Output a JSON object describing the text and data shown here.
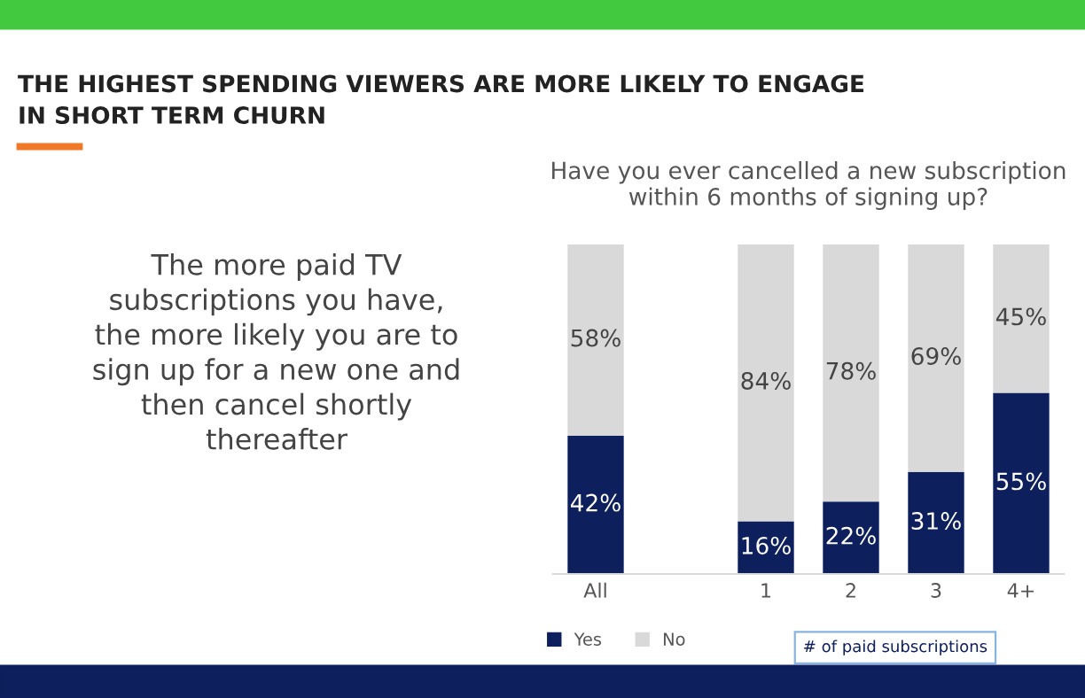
{
  "chart_data": {
    "type": "bar",
    "stacked": true,
    "title": "THE HIGHEST SPENDING VIEWERS ARE MORE LIKELY TO ENGAGE\nIN SHORT TERM CHURN",
    "subtitle": "Have you ever cancelled a new subscription\nwithin 6 months of signing up?",
    "xlabel": "# of paid subscriptions",
    "annotations": [
      "The more paid TV\nsubscriptions you have,\nthe more likely you are to\nsign up for a new one and\nthen cancel shortly\nthereafter"
    ],
    "categories": [
      "All",
      null,
      "1",
      "2",
      "3",
      "4+"
    ],
    "series": [
      {
        "name": "Yes",
        "color": "#0d1f5c",
        "values": [
          42,
          null,
          16,
          22,
          31,
          55
        ],
        "value_labels": [
          "42%",
          null,
          "16%",
          "22%",
          "31%",
          "55%"
        ]
      },
      {
        "name": "No",
        "color": "#d9d9d9",
        "values": [
          58,
          null,
          84,
          78,
          69,
          45
        ],
        "value_labels": [
          "58%",
          null,
          "84%",
          "78%",
          "69%",
          "45%"
        ]
      }
    ],
    "legend": "bottom left",
    "grid": false
  }
}
